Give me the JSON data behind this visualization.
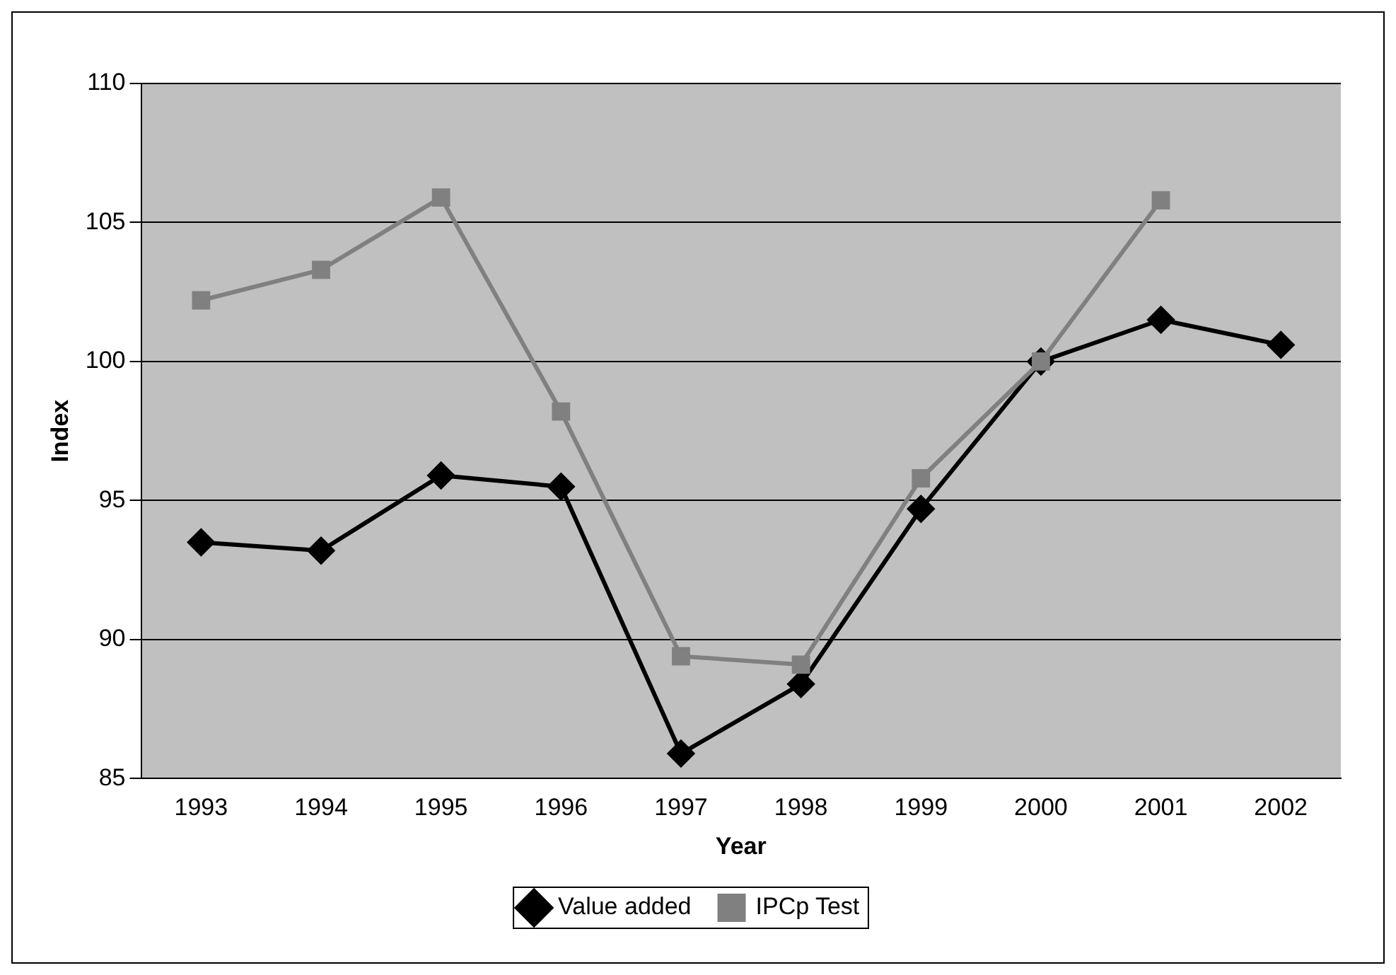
{
  "chart_data": {
    "type": "line",
    "xlabel": "Year",
    "ylabel": "Index",
    "categories": [
      "1993",
      "1994",
      "1995",
      "1996",
      "1997",
      "1998",
      "1999",
      "2000",
      "2001",
      "2002"
    ],
    "series": [
      {
        "name": "Value added",
        "color": "#000000",
        "marker": "diamond",
        "values": [
          93.5,
          93.2,
          95.9,
          95.5,
          85.9,
          88.4,
          94.7,
          100,
          101.5,
          100.6
        ]
      },
      {
        "name": "IPCp Test",
        "color": "#808080",
        "marker": "square",
        "values": [
          102.2,
          103.3,
          105.9,
          98.2,
          89.4,
          89.1,
          95.8,
          100,
          105.8,
          null
        ]
      }
    ],
    "ylim": [
      85,
      110
    ],
    "yticks": [
      85,
      90,
      95,
      100,
      105,
      110
    ],
    "grid": "y",
    "legend": "bottom",
    "line_style": "solid"
  }
}
